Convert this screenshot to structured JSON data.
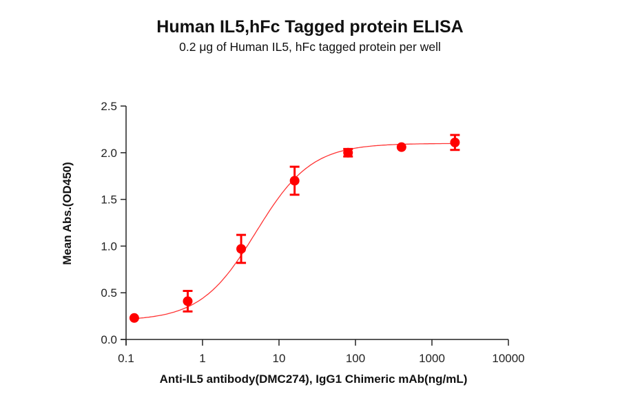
{
  "chart_data": {
    "type": "scatter",
    "title": "Human IL5,hFc Tagged protein ELISA",
    "subtitle": "0.2 μg of Human IL5, hFc tagged protein per well",
    "xlabel": "Anti-IL5 antibody(DMC274), IgG1 Chimeric mAb(ng/mL)",
    "ylabel": "Mean Abs.(OD450)",
    "xscale": "log",
    "xlim": [
      0.1,
      10000
    ],
    "ylim": [
      0,
      2.5
    ],
    "xticks": [
      "0.1",
      "1",
      "10",
      "100",
      "1000",
      "10000"
    ],
    "yticks": [
      "0.0",
      "0.5",
      "1.0",
      "1.5",
      "2.0",
      "2.5"
    ],
    "grid": false,
    "legend": null,
    "series": [
      {
        "name": "Anti-IL5 antibody(DMC274)",
        "color": "#ff0000",
        "x": [
          0.128,
          0.64,
          3.2,
          16,
          80,
          400,
          2000
        ],
        "y": [
          0.23,
          0.41,
          0.97,
          1.7,
          2.0,
          2.06,
          2.11
        ],
        "error": [
          0.02,
          0.11,
          0.15,
          0.15,
          0.04,
          0.02,
          0.08
        ]
      }
    ],
    "fit": {
      "model": "4PL",
      "bottom": 0.2,
      "top": 2.1,
      "ec50": 5.0,
      "hill": 1.2
    }
  }
}
